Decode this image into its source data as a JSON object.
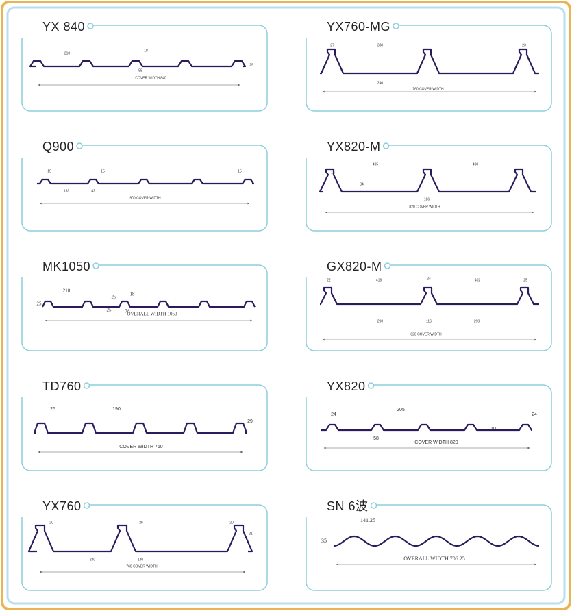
{
  "panels": [
    {
      "title": "YX 840",
      "labels": [
        "210",
        "18",
        "58",
        "29",
        "COVER WIDTH 840"
      ]
    },
    {
      "title": "YX760-MG",
      "labels": [
        "27",
        "380",
        "23",
        "240",
        "760 COVER WIDTH"
      ]
    },
    {
      "title": "Q900",
      "labels": [
        "15",
        "15",
        "15",
        "183",
        "42",
        "900 COVER WIDTH"
      ]
    },
    {
      "title": "YX820-M",
      "labels": [
        "16",
        "405",
        "400",
        "34",
        "186",
        "820 COVER WIDTH"
      ]
    },
    {
      "title": "MK1050",
      "labels": [
        "25",
        "210",
        "25",
        "18",
        "25",
        "78",
        "OVERALL WIDTH 1050"
      ]
    },
    {
      "title": "GX820-M",
      "labels": [
        "22",
        "416",
        "24",
        "402",
        "25",
        "290",
        "116",
        "290",
        "820 COVER WIDTH"
      ]
    },
    {
      "title": "TD760",
      "labels": [
        "25",
        "190",
        "29",
        "COVER WIDTH 760"
      ]
    },
    {
      "title": "YX820",
      "labels": [
        "24",
        "205",
        "24",
        "58",
        "10",
        "COVER WIDTH 820"
      ]
    },
    {
      "title": "YX760",
      "labels": [
        "20",
        "26",
        "20",
        "21",
        "240",
        "140",
        "760 COVER WIDTH"
      ]
    },
    {
      "title": "SN 6波",
      "labels": [
        "141.25",
        "35",
        "OVERALL WIDTH 706.25"
      ]
    }
  ]
}
